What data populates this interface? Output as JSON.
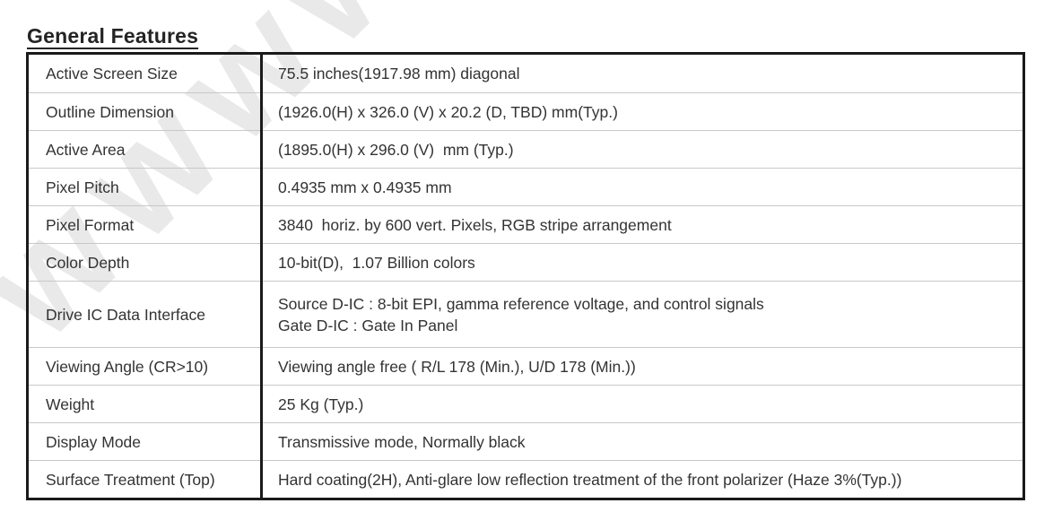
{
  "page": {
    "title": "General Features"
  },
  "watermark": {
    "text": "wwww",
    "color": "#e9e9e9"
  },
  "colors": {
    "outer_border": "#1a1a1a",
    "row_separator": "#c8c8c8",
    "text": "#333333"
  },
  "table": {
    "rows": [
      {
        "label": "Active Screen Size",
        "value": "75.5 inches(1917.98 mm) diagonal"
      },
      {
        "label": "Outline Dimension",
        "value": "(1926.0(H) x 326.0 (V) x 20.2 (D, TBD) mm(Typ.)"
      },
      {
        "label": "Active Area",
        "value": "(1895.0(H) x 296.0 (V)  mm (Typ.)"
      },
      {
        "label": "Pixel Pitch",
        "value": "0.4935 mm x 0.4935 mm"
      },
      {
        "label": "Pixel Format",
        "value": "3840  horiz. by 600 vert. Pixels, RGB stripe arrangement"
      },
      {
        "label": "Color Depth",
        "value": "10-bit(D),  1.07 Billion colors"
      },
      {
        "label": "Drive IC Data Interface",
        "value": "Source D-IC : 8-bit EPI, gamma reference voltage, and control signals\nGate D-IC : Gate In Panel"
      },
      {
        "label": "Viewing Angle (CR>10)",
        "value": "Viewing angle free ( R/L 178 (Min.), U/D 178 (Min.))"
      },
      {
        "label": "Weight",
        "value": "25 Kg (Typ.)"
      },
      {
        "label": "Display Mode",
        "value": "Transmissive mode, Normally black"
      },
      {
        "label": "Surface Treatment (Top)",
        "value": "Hard coating(2H), Anti-glare low reflection treatment of the front polarizer (Haze 3%(Typ.))"
      }
    ]
  }
}
